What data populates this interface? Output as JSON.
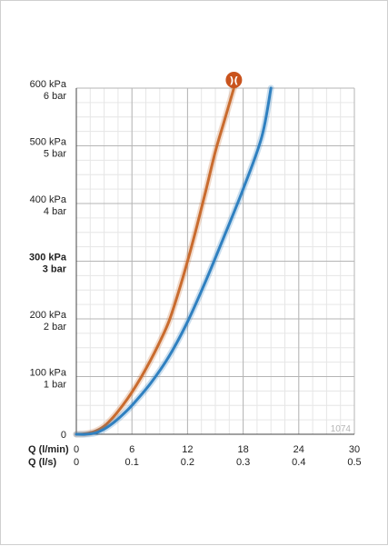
{
  "chart_data": {
    "type": "line",
    "chart_id": "1074",
    "x_axis": {
      "label_primary": "Q (l/min)",
      "label_secondary": "Q (l/s)",
      "range": [
        0,
        30
      ],
      "major_ticks": [
        0,
        6,
        12,
        18,
        24,
        30
      ],
      "primary_tick_labels": [
        "0",
        "6",
        "12",
        "18",
        "24",
        "30"
      ],
      "secondary_tick_labels": [
        "0",
        "0.1",
        "0.2",
        "0.3",
        "0.4",
        "0.5"
      ],
      "minor_step": 1.5
    },
    "y_axis": {
      "range": [
        0,
        600
      ],
      "unit": "kPa",
      "major_ticks": [
        0,
        100,
        200,
        300,
        400,
        500,
        600
      ],
      "tick_labels_kpa": [
        "0",
        "100 kPa",
        "200 kPa",
        "300 kPa",
        "400 kPa",
        "500 kPa",
        "600 kPa"
      ],
      "tick_labels_bar": [
        "",
        "1 bar",
        "2 bar",
        "3 bar",
        "4 bar",
        "5 bar",
        "6 bar"
      ],
      "emphasized_tick": 300,
      "minor_step": 25
    },
    "grid": true,
    "series": [
      {
        "color": "#c96b2e",
        "points": [
          [
            0,
            0
          ],
          [
            1,
            1
          ],
          [
            2,
            5
          ],
          [
            3,
            14
          ],
          [
            4,
            30
          ],
          [
            5,
            50
          ],
          [
            6,
            73
          ],
          [
            7,
            99
          ],
          [
            8,
            128
          ],
          [
            9,
            160
          ],
          [
            10,
            196
          ],
          [
            11,
            245
          ],
          [
            12,
            300
          ],
          [
            13,
            360
          ],
          [
            14,
            424
          ],
          [
            15,
            490
          ],
          [
            16,
            545
          ],
          [
            17,
            600
          ]
        ],
        "end_marker": {
          "icon": "hansgrohe-logo-icon",
          "text": ")(",
          "color": "#c9531d"
        }
      },
      {
        "color": "#2f80c0",
        "points": [
          [
            0,
            0
          ],
          [
            1,
            0
          ],
          [
            2,
            2
          ],
          [
            3,
            9
          ],
          [
            4,
            20
          ],
          [
            5,
            34
          ],
          [
            6,
            50
          ],
          [
            8,
            88
          ],
          [
            10,
            135
          ],
          [
            12,
            195
          ],
          [
            14,
            267
          ],
          [
            16,
            345
          ],
          [
            18,
            425
          ],
          [
            20,
            515
          ],
          [
            21,
            600
          ]
        ]
      }
    ]
  }
}
